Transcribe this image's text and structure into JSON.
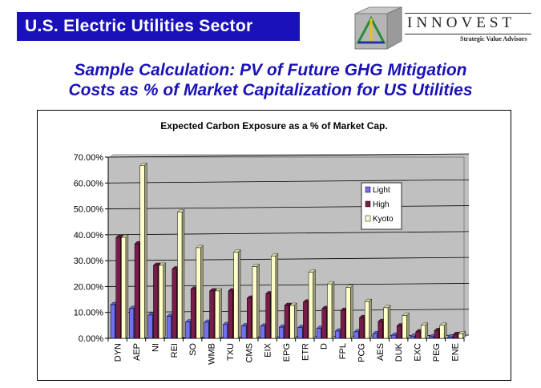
{
  "banner": {
    "title": "U.S. Electric Utilities Sector"
  },
  "logo": {
    "name": "INNOVEST",
    "tagline": "Strategic Value Advisors"
  },
  "headline": {
    "line1": "Sample Calculation: PV of Future GHG Mitigation",
    "line2": "Costs as % of Market Capitalization for US Utilities"
  },
  "chart_data": {
    "type": "bar",
    "title": "Expected Carbon Exposure as a % of Market Cap.",
    "xlabel": "",
    "ylabel": "",
    "ylim": [
      0,
      0.7
    ],
    "yticks": [
      "0.00%",
      "10.00%",
      "20.00%",
      "30.00%",
      "40.00%",
      "50.00%",
      "60.00%",
      "70.00%"
    ],
    "grid": true,
    "legend_position": "upper-right-inside",
    "categories": [
      "DYN",
      "AEP",
      "NI",
      "REI",
      "SO",
      "WMB",
      "TXU",
      "CMS",
      "EIX",
      "EPG",
      "ETR",
      "D",
      "FPL",
      "PCG",
      "AES",
      "DUK",
      "EXC",
      "PEG",
      "ENE"
    ],
    "series": [
      {
        "name": "Light",
        "color": "#7070f0",
        "values": [
          0.13,
          0.115,
          0.09,
          0.085,
          0.063,
          0.062,
          0.053,
          0.048,
          0.047,
          0.043,
          0.042,
          0.038,
          0.028,
          0.025,
          0.018,
          0.012,
          0.008,
          0.006,
          0.005
        ]
      },
      {
        "name": "High",
        "color": "#7a1c4a",
        "values": [
          0.39,
          0.365,
          0.282,
          0.268,
          0.19,
          0.183,
          0.183,
          0.155,
          0.172,
          0.127,
          0.14,
          0.115,
          0.108,
          0.08,
          0.065,
          0.048,
          0.025,
          0.03,
          0.015
        ]
      },
      {
        "name": "Kyoto",
        "color": "#ffffc8",
        "values": [
          0.39,
          0.668,
          0.282,
          0.488,
          0.35,
          0.183,
          0.333,
          0.277,
          0.318,
          0.127,
          0.255,
          0.21,
          0.196,
          0.142,
          0.118,
          0.088,
          0.05,
          0.05,
          0.018
        ]
      }
    ]
  }
}
